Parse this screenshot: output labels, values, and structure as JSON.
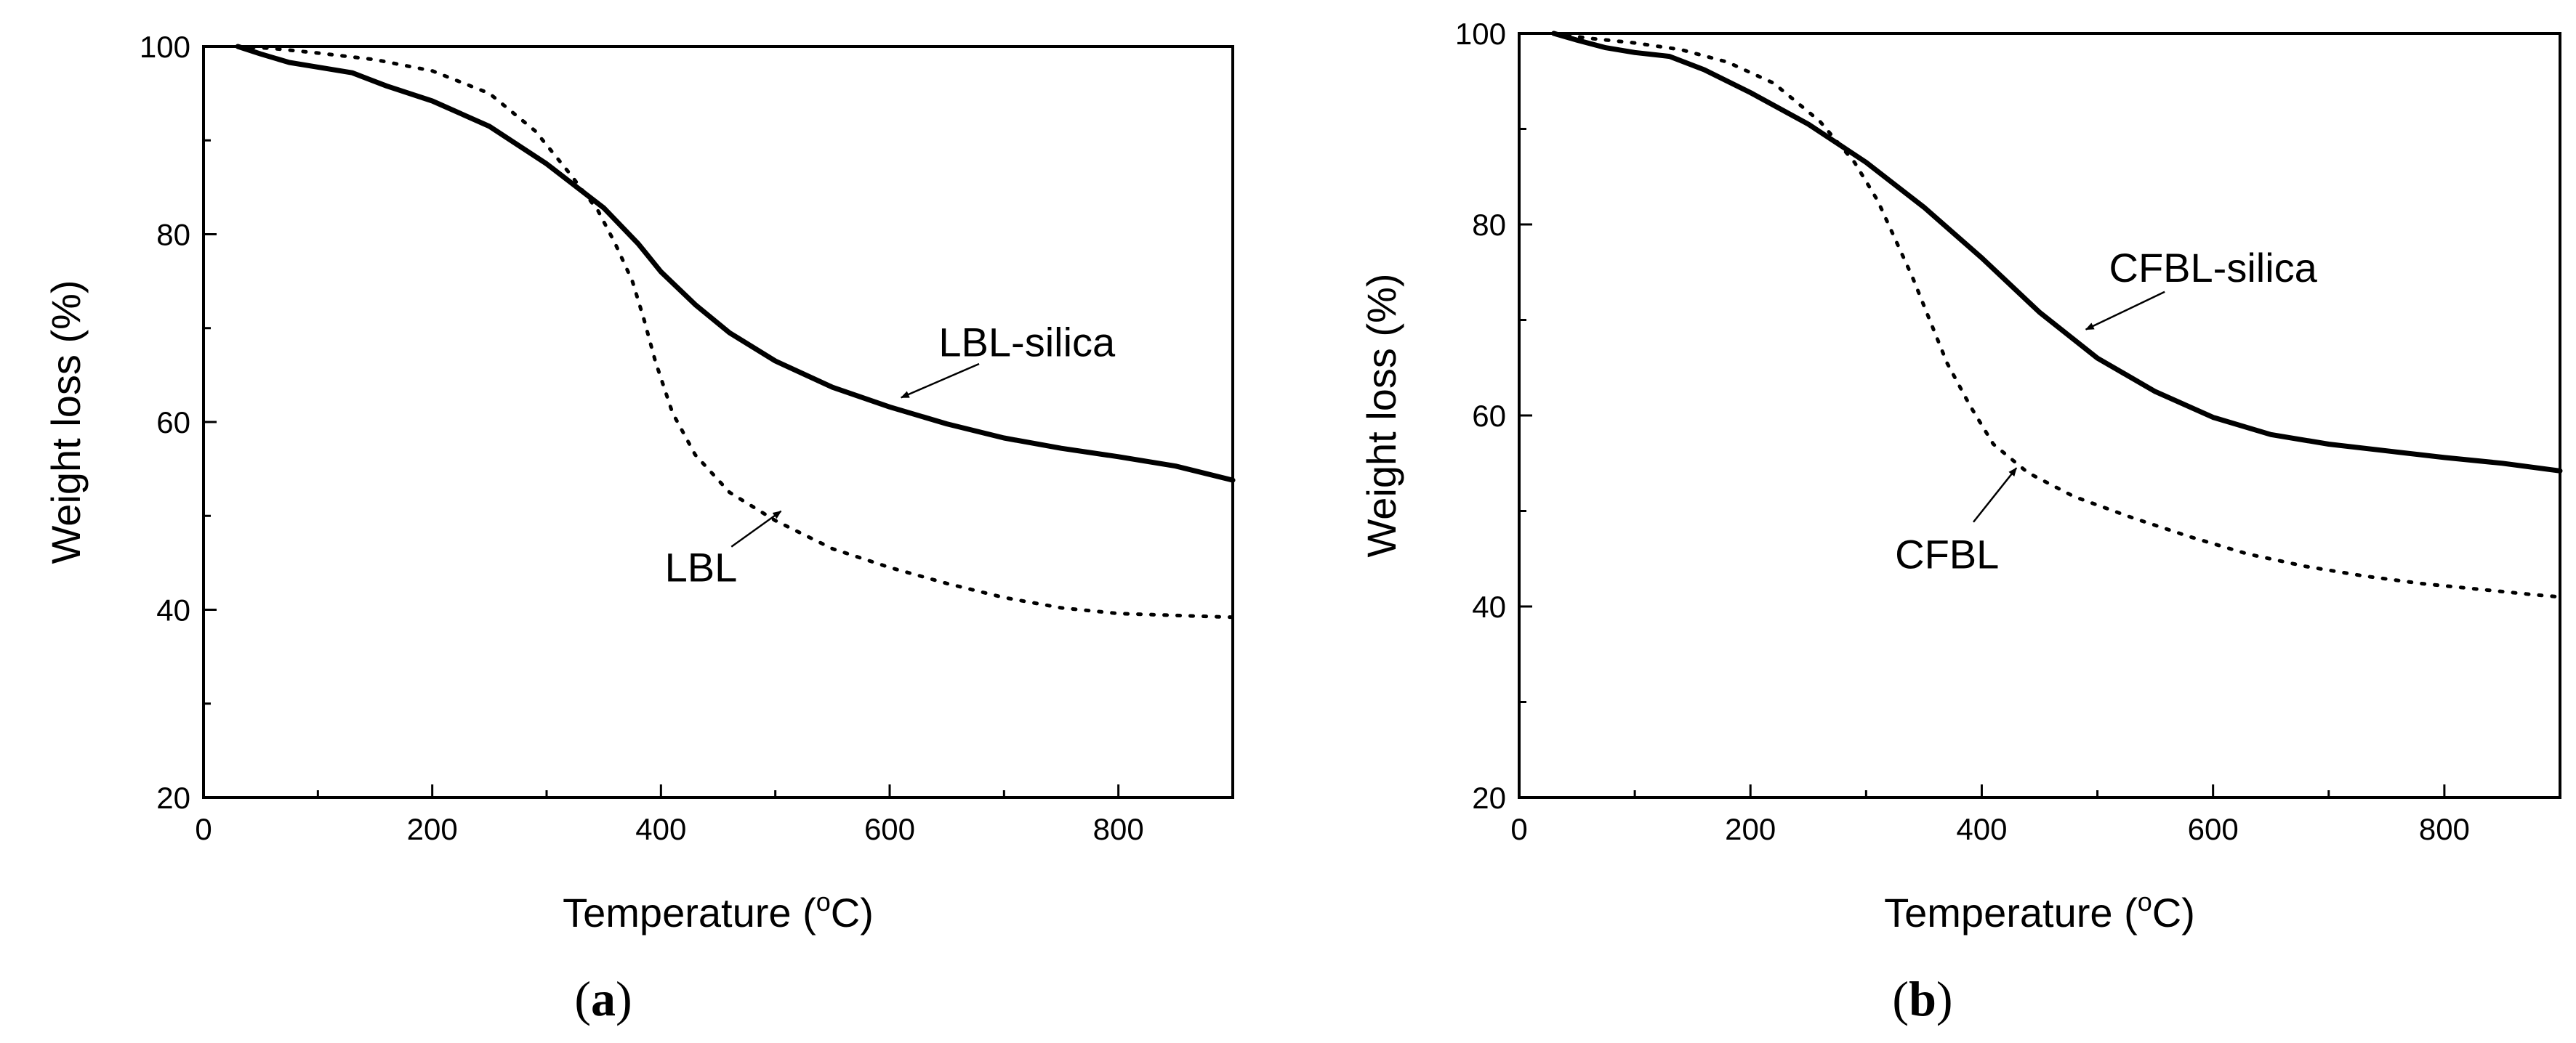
{
  "chart_data": [
    {
      "type": "line",
      "panel_label": "a",
      "xlabel": "Temperature (",
      "xlabel_sup": "o",
      "xlabel_end": "C)",
      "ylabel": "Weight loss (%)",
      "xlim": [
        0,
        900
      ],
      "ylim": [
        20,
        100
      ],
      "xticks": [
        0,
        200,
        400,
        600,
        800
      ],
      "yticks": [
        20,
        40,
        60,
        80,
        100
      ],
      "grid": false,
      "series": [
        {
          "name": "LBL-silica",
          "style": "solid",
          "x": [
            30,
            50,
            75,
            100,
            130,
            160,
            200,
            250,
            300,
            350,
            380,
            400,
            430,
            460,
            500,
            550,
            600,
            650,
            700,
            750,
            800,
            850,
            900
          ],
          "y": [
            100,
            99.2,
            98.3,
            97.8,
            97.2,
            95.8,
            94.2,
            91.5,
            87.5,
            82.8,
            79.0,
            76.0,
            72.5,
            69.5,
            66.5,
            63.7,
            61.6,
            59.8,
            58.3,
            57.2,
            56.3,
            55.3,
            53.8
          ]
        },
        {
          "name": "LBL",
          "style": "dotted",
          "x": [
            30,
            60,
            100,
            150,
            200,
            250,
            290,
            320,
            345,
            360,
            375,
            385,
            395,
            410,
            430,
            460,
            500,
            550,
            600,
            650,
            700,
            750,
            800,
            850,
            900
          ],
          "y": [
            100,
            99.8,
            99.3,
            98.6,
            97.4,
            95.0,
            91.0,
            86.5,
            82.5,
            79.0,
            75.0,
            71.0,
            66.5,
            61.0,
            56.5,
            52.5,
            49.5,
            46.5,
            44.5,
            42.8,
            41.3,
            40.2,
            39.6,
            39.4,
            39.2
          ]
        }
      ],
      "annotations": [
        {
          "text": "LBL-silica",
          "target": [
            610,
            62.6
          ],
          "label_at": [
            720,
            67
          ]
        },
        {
          "text": "LBL",
          "target": [
            505,
            50.5
          ],
          "label_at": [
            435,
            43
          ]
        }
      ]
    },
    {
      "type": "line",
      "panel_label": "b",
      "xlabel": "Temperature (",
      "xlabel_sup": "o",
      "xlabel_end": "C)",
      "ylabel": "Weight loss (%)",
      "xlim": [
        0,
        900
      ],
      "ylim": [
        20,
        100
      ],
      "xticks": [
        0,
        200,
        400,
        600,
        800
      ],
      "yticks": [
        20,
        40,
        60,
        80,
        100
      ],
      "grid": false,
      "series": [
        {
          "name": "CFBL-silica",
          "style": "solid",
          "x": [
            30,
            50,
            75,
            100,
            130,
            160,
            200,
            250,
            300,
            350,
            400,
            450,
            500,
            550,
            600,
            650,
            700,
            750,
            800,
            850,
            900
          ],
          "y": [
            100,
            99.3,
            98.5,
            98.0,
            97.6,
            96.2,
            93.8,
            90.5,
            86.5,
            81.8,
            76.5,
            70.8,
            66.0,
            62.5,
            59.8,
            58.0,
            57.0,
            56.3,
            55.6,
            55.0,
            54.2
          ]
        },
        {
          "name": "CFBL",
          "style": "dotted",
          "x": [
            30,
            60,
            100,
            140,
            180,
            220,
            260,
            290,
            310,
            325,
            340,
            355,
            370,
            390,
            410,
            440,
            480,
            530,
            580,
            630,
            680,
            730,
            780,
            830,
            880,
            900
          ],
          "y": [
            100,
            99.5,
            99.0,
            98.3,
            97.0,
            94.8,
            90.8,
            86.5,
            82.5,
            78.5,
            74.5,
            70.0,
            65.5,
            61.0,
            57.0,
            54.0,
            51.5,
            49.3,
            47.3,
            45.5,
            44.2,
            43.2,
            42.4,
            41.8,
            41.2,
            41.0
          ]
        }
      ],
      "annotations": [
        {
          "text": "CFBL-silica",
          "target": [
            490,
            69.0
          ],
          "label_at": [
            600,
            74
          ]
        },
        {
          "text": "CFBL",
          "target": [
            430,
            54.5
          ],
          "label_at": [
            370,
            44
          ]
        }
      ]
    }
  ]
}
